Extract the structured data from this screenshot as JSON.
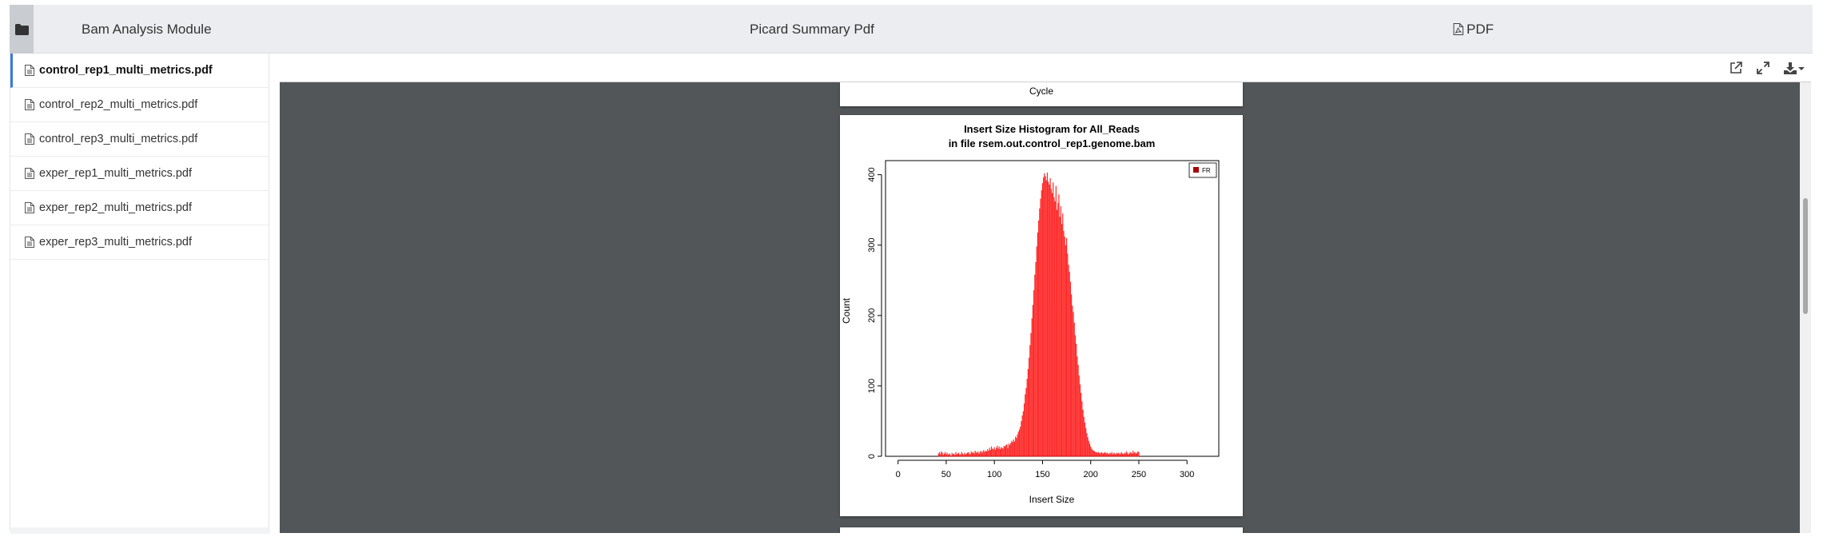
{
  "header": {
    "module_title": "Bam Analysis Module",
    "page_title": "Picard Summary Pdf",
    "pdf_tab_label": "PDF"
  },
  "sidebar": {
    "files": [
      {
        "label": "control_rep1_multi_metrics.pdf",
        "active": true
      },
      {
        "label": "control_rep2_multi_metrics.pdf",
        "active": false
      },
      {
        "label": "control_rep3_multi_metrics.pdf",
        "active": false
      },
      {
        "label": "exper_rep1_multi_metrics.pdf",
        "active": false
      },
      {
        "label": "exper_rep2_multi_metrics.pdf",
        "active": false
      },
      {
        "label": "exper_rep3_multi_metrics.pdf",
        "active": false
      }
    ]
  },
  "viewer": {
    "toolbar_icons": [
      "external-link-icon",
      "expand-icon",
      "download-icon",
      "caret-down-icon"
    ],
    "previous_page_label": "Cycle"
  },
  "chart_data": {
    "type": "bar",
    "title": "Insert Size Histogram for All_Reads",
    "subtitle": "in file rsem.out.control_rep1.genome.bam",
    "xlabel": "Insert Size",
    "ylabel": "Count",
    "xlim": [
      -13,
      333
    ],
    "ylim": [
      0,
      420
    ],
    "xticks": [
      0,
      50,
      100,
      150,
      200,
      250,
      300
    ],
    "yticks": [
      0,
      100,
      200,
      300,
      400
    ],
    "legend": {
      "entries": [
        "FR"
      ],
      "placement": "top-right"
    },
    "color": "#ff2a2a",
    "series": [
      {
        "name": "FR",
        "x_start": 42,
        "x_step": 1,
        "values": [
          4,
          6,
          3,
          7,
          5,
          2,
          4,
          6,
          3,
          5,
          2,
          4,
          3,
          1,
          5,
          3,
          4,
          2,
          6,
          3,
          4,
          5,
          2,
          3,
          6,
          4,
          2,
          5,
          3,
          4,
          5,
          6,
          4,
          3,
          7,
          5,
          6,
          4,
          8,
          6,
          5,
          7,
          4,
          6,
          8,
          5,
          7,
          9,
          6,
          8,
          7,
          10,
          8,
          12,
          9,
          14,
          11,
          10,
          13,
          9,
          12,
          15,
          11,
          14,
          10,
          13,
          12,
          11,
          15,
          14,
          16,
          17,
          12,
          18,
          16,
          19,
          22,
          20,
          24,
          21,
          28,
          26,
          31,
          35,
          38,
          42,
          50,
          58,
          64,
          75,
          88,
          97,
          110,
          124,
          140,
          158,
          175,
          196,
          215,
          236,
          258,
          276,
          298,
          318,
          335,
          352,
          366,
          378,
          388,
          396,
          402,
          398,
          392,
          403,
          390,
          386,
          395,
          380,
          374,
          389,
          368,
          362,
          384,
          350,
          360,
          372,
          340,
          355,
          330,
          345,
          320,
          312,
          300,
          310,
          288,
          272,
          262,
          248,
          230,
          214,
          205,
          190,
          172,
          160,
          142,
          130,
          115,
          102,
          90,
          78,
          66,
          56,
          48,
          40,
          33,
          27,
          22,
          18,
          14,
          11,
          9,
          8,
          7,
          6,
          6,
          5,
          6,
          5,
          4,
          6,
          5,
          4,
          5,
          6,
          4,
          5,
          4,
          3,
          5,
          4,
          6,
          3,
          5,
          4,
          3,
          5,
          4,
          5,
          3,
          4,
          6,
          4,
          3,
          5,
          4,
          7,
          5,
          3,
          4,
          6,
          5,
          4,
          8,
          5,
          6,
          4,
          5,
          7,
          6
        ]
      }
    ]
  }
}
